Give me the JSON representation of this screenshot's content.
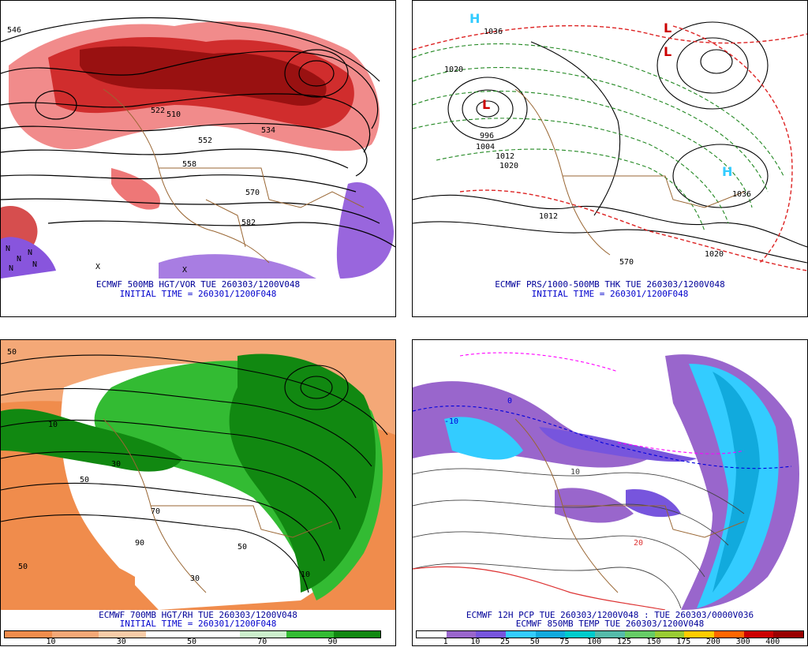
{
  "panels": [
    {
      "id": "p1",
      "caption_line1": "ECMWF 500MB HGT/VOR TUE 260303/1200V048",
      "caption_line2": "INITIAL TIME = 260301/1200F048",
      "contour_labels": [
        "546",
        "510",
        "522",
        "534",
        "552",
        "558",
        "570",
        "582"
      ],
      "marker_letters": [
        "N",
        "X"
      ]
    },
    {
      "id": "p2",
      "caption_line1": "ECMWF PRS/1000-500MB THK TUE 260303/1200V048",
      "caption_line2": "INITIAL TIME = 260301/1200F048",
      "contour_labels": [
        "1020",
        "1036",
        "996",
        "1004",
        "1012",
        "1020",
        "1036",
        "1012",
        "570",
        "1020"
      ],
      "pressure_centers": [
        {
          "letter": "H",
          "color": "#33ccff"
        },
        {
          "letter": "L",
          "color": "#cc0000"
        },
        {
          "letter": "L",
          "color": "#cc0000"
        },
        {
          "letter": "H",
          "color": "#33ccff"
        },
        {
          "letter": "L",
          "color": "#cc0000"
        }
      ]
    },
    {
      "id": "p3",
      "caption_line1": "ECMWF 700MB HGT/RH TUE 260303/1200V048",
      "caption_line2": "INITIAL TIME = 260301/1200F048",
      "contour_labels": [
        "50",
        "10",
        "30",
        "50",
        "70",
        "90",
        "50",
        "30",
        "10",
        "50"
      ],
      "colorbar": {
        "colors": [
          "#f08c4c",
          "#f4a877",
          "#f8cca8",
          "#ffffff",
          "#ffffff",
          "#cceecc",
          "#33bb33",
          "#118811"
        ],
        "labels": [
          "10",
          "30",
          "50",
          "70",
          "90"
        ]
      }
    },
    {
      "id": "p4",
      "caption_line1": "ECMWF 12H PCP TUE 260303/1200V048 : TUE 260303/0000V036",
      "caption_line2": "ECMWF 850MB TEMP TUE 260303/1200V048",
      "contour_labels": [
        "-10",
        "0",
        "10",
        "20"
      ],
      "colorbar": {
        "colors": [
          "#ffffff",
          "#9966cc",
          "#7755dd",
          "#33ccff",
          "#11aadd",
          "#00cccc",
          "#55bbaa",
          "#66cc66",
          "#99cc33",
          "#ffcc00",
          "#ff6600",
          "#cc0000",
          "#990000"
        ],
        "labels": [
          "1",
          "10",
          "25",
          "50",
          "75",
          "100",
          "125",
          "150",
          "175",
          "200",
          "300",
          "400"
        ]
      }
    }
  ]
}
